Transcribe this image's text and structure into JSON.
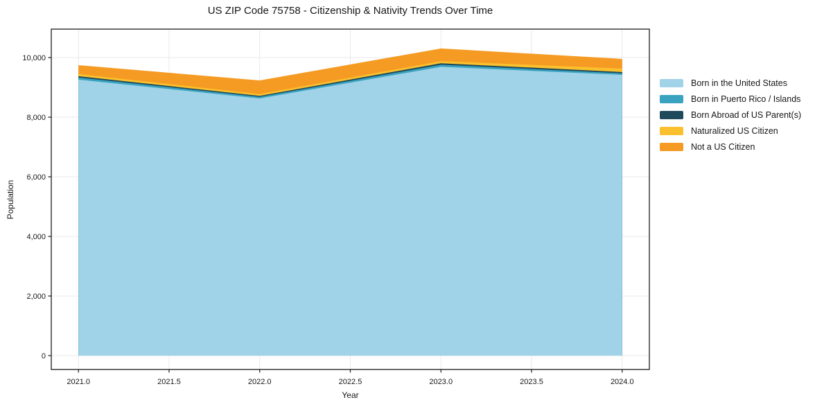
{
  "title": "US ZIP Code 75758 - Citizenship & Nativity Trends Over Time",
  "chart_data": {
    "type": "area",
    "stacked": true,
    "title": "US ZIP Code 75758 - Citizenship & Nativity Trends Over Time",
    "xlabel": "Year",
    "ylabel": "Population",
    "x": [
      2021,
      2022,
      2023,
      2024
    ],
    "series": [
      {
        "name": "Born in the United States",
        "color": "#A0D2E8",
        "values": [
          9260,
          8630,
          9690,
          9420
        ]
      },
      {
        "name": "Born in Puerto Rico / Islands",
        "color": "#39A3C0",
        "values": [
          70,
          50,
          70,
          50
        ]
      },
      {
        "name": "Born Abroad of US Parent(s)",
        "color": "#1F4A5C",
        "values": [
          45,
          35,
          50,
          45
        ]
      },
      {
        "name": "Naturalized US Citizen",
        "color": "#FBC02D",
        "values": [
          70,
          60,
          70,
          115
        ]
      },
      {
        "name": "Not a US Citizen",
        "color": "#F59B23",
        "values": [
          300,
          460,
          425,
          325
        ]
      }
    ],
    "totals": [
      9745,
      9235,
      10305,
      9955
    ],
    "xlim": [
      2020.85,
      2024.15
    ],
    "ylim": [
      -465,
      10955
    ],
    "xticks": {
      "values": [
        2021.0,
        2021.5,
        2022.0,
        2022.5,
        2023.0,
        2023.5,
        2024.0
      ],
      "labels": [
        "2021.0",
        "2021.5",
        "2022.0",
        "2022.5",
        "2023.0",
        "2023.5",
        "2024.0"
      ]
    },
    "yticks": {
      "values": [
        0,
        2000,
        4000,
        6000,
        8000,
        10000
      ],
      "labels": [
        "0",
        "2,000",
        "4,000",
        "6,000",
        "8,000",
        "10,000"
      ]
    },
    "grid": true,
    "grid_color": "#e8e8e8",
    "axis_color": "#1a1a1a",
    "legend_position": "right"
  }
}
